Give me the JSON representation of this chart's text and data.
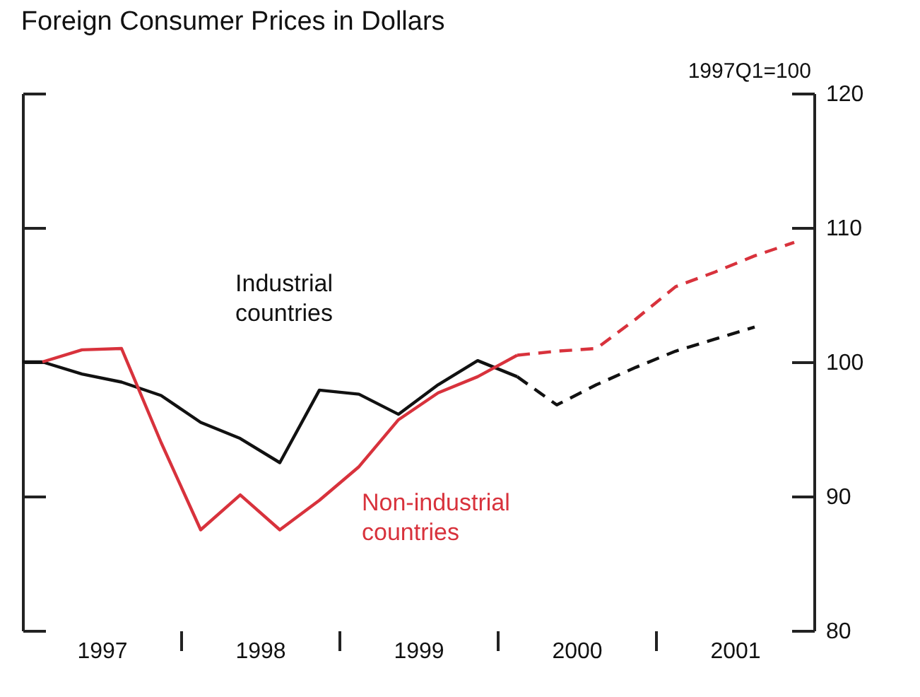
{
  "chart_data": {
    "type": "line",
    "title": "Foreign Consumer Prices in Dollars",
    "ylabel": "1997Q1=100",
    "xlim": [
      1997,
      2002
    ],
    "xticks": [
      {
        "value": 1997.5,
        "label": "1997"
      },
      {
        "value": 1998,
        "label": null
      },
      {
        "value": 1998.5,
        "label": "1998"
      },
      {
        "value": 1999,
        "label": null
      },
      {
        "value": 1999.5,
        "label": "1999"
      },
      {
        "value": 2000,
        "label": null
      },
      {
        "value": 2000.5,
        "label": "2000"
      },
      {
        "value": 2001,
        "label": null
      },
      {
        "value": 2001.5,
        "label": "2001"
      }
    ],
    "ylim": [
      80,
      120
    ],
    "yticks": [
      80,
      90,
      100,
      110,
      120
    ],
    "grid": false,
    "legend": false,
    "series": [
      {
        "name": "Industrial countries",
        "color": "#111111",
        "line_style": "solid",
        "x": [
          1997,
          1997.125,
          1997.375,
          1997.625,
          1997.875,
          1998.125,
          1998.375,
          1998.625,
          1998.875,
          1999.125,
          1999.375,
          1999.625,
          1999.875,
          2000.125
        ],
        "values": [
          100,
          100,
          99.1,
          98.5,
          97.5,
          95.5,
          94.3,
          92.5,
          97.9,
          97.6,
          96.1,
          98.3,
          100.1,
          98.9
        ]
      },
      {
        "color": "#111111",
        "line_style": "dashed",
        "x": [
          2000.125,
          2000.375,
          2000.625,
          2000.875,
          2001.125,
          2001.375,
          2001.625
        ],
        "values": [
          98.9,
          96.8,
          98.3,
          99.6,
          100.8,
          101.7,
          102.6
        ]
      },
      {
        "name": "Non-industrial countries",
        "color": "#d8323c",
        "line_style": "solid",
        "x": [
          1997.125,
          1997.375,
          1997.625,
          1997.875,
          1998.125,
          1998.375,
          1998.625,
          1998.875,
          1999.125,
          1999.375,
          1999.625,
          1999.875,
          2000.125
        ],
        "values": [
          100,
          100.9,
          101,
          94,
          87.5,
          90.1,
          87.5,
          89.7,
          92.2,
          95.7,
          97.7,
          98.9,
          100.5
        ]
      },
      {
        "color": "#d8323c",
        "line_style": "dashed",
        "x": [
          2000.125,
          2000.375,
          2000.625,
          2000.875,
          2001.125,
          2001.375,
          2001.625,
          2001.875
        ],
        "values": [
          100.5,
          100.8,
          101,
          103.2,
          105.6,
          106.7,
          107.9,
          108.9
        ]
      }
    ]
  }
}
